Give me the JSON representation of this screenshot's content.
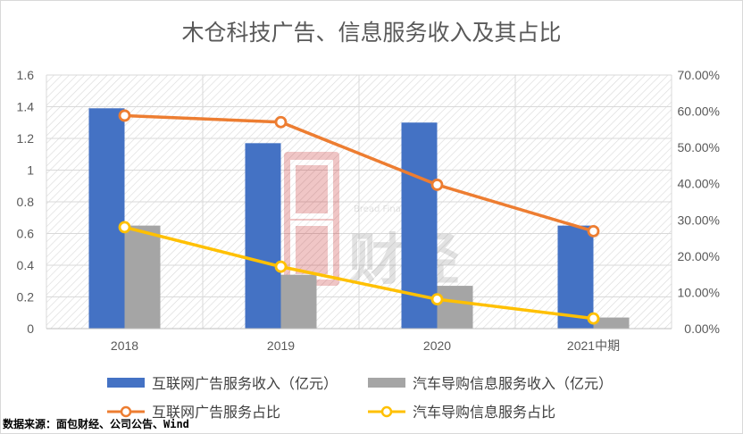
{
  "chart_data": {
    "type": "bar",
    "title": "木仓科技广告、信息服务收入及其占比",
    "categories": [
      "2018",
      "2019",
      "2020",
      "2021中期"
    ],
    "series": [
      {
        "name": "互联网广告服务收入（亿元）",
        "kind": "bar",
        "axis": "left",
        "color": "#4472C4",
        "values": [
          1.39,
          1.17,
          1.3,
          0.65
        ]
      },
      {
        "name": "汽车导购信息服务收入（亿元）",
        "kind": "bar",
        "axis": "left",
        "color": "#A5A5A5",
        "values": [
          0.65,
          0.34,
          0.27,
          0.07
        ]
      },
      {
        "name": "互联网广告服务占比",
        "kind": "line",
        "axis": "right",
        "color": "#ED7D31",
        "values": [
          58.8,
          57.0,
          39.7,
          26.9
        ]
      },
      {
        "name": "汽车导购信息服务占比",
        "kind": "line",
        "axis": "right",
        "color": "#FFC000",
        "values": [
          28.0,
          17.1,
          8.1,
          2.8
        ]
      }
    ],
    "ylim_left": [
      0,
      1.6
    ],
    "yticks_left": [
      "0",
      "0.2",
      "0.4",
      "0.6",
      "0.8",
      "1",
      "1.2",
      "1.4",
      "1.6"
    ],
    "ylim_right": [
      0,
      70
    ],
    "yticks_right": [
      "0.00%",
      "10.00%",
      "20.00%",
      "30.00%",
      "40.00%",
      "50.00%",
      "60.00%",
      "70.00%"
    ],
    "grid": true,
    "legend_position": "bottom"
  },
  "source_note": "数据来源：面包财经、公司公告、Wind",
  "watermark": {
    "brand": "面包财经",
    "sub": "Bread Finance"
  }
}
